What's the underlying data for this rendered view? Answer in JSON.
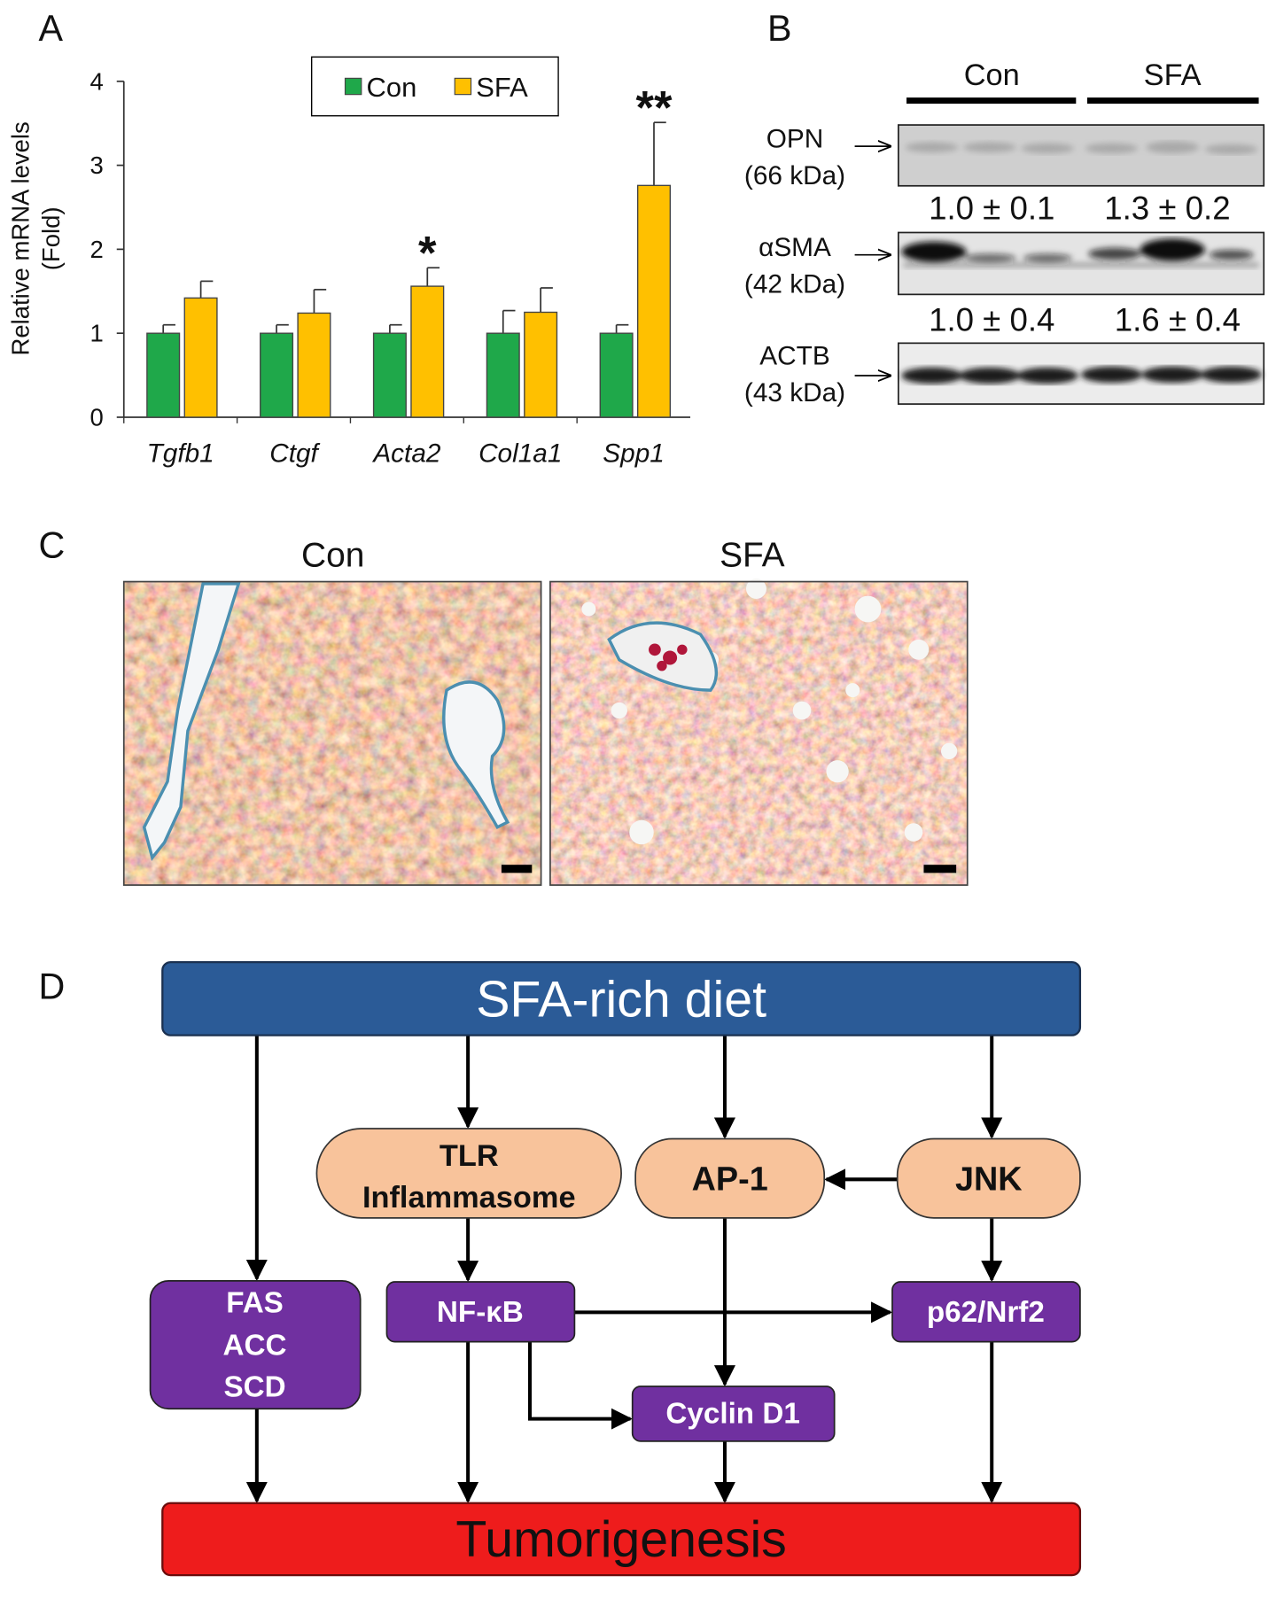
{
  "panel_labels": [
    "A",
    "B",
    "C",
    "D"
  ],
  "chart_data": {
    "type": "bar",
    "y_label": [
      "Relative mRNA levels",
      "(Fold)"
    ],
    "categories": [
      "Tgfb1",
      "Ctgf",
      "Acta2",
      "Col1a1",
      "Spp1"
    ],
    "series": [
      {
        "name": "Con",
        "color": "#1fa84a",
        "values": [
          1,
          1,
          1,
          1,
          1
        ],
        "errors": [
          0.1,
          0.1,
          0.1,
          0.27,
          0.1
        ]
      },
      {
        "name": "SFA",
        "color": "#ffc000",
        "values": [
          1.42,
          1.24,
          1.56,
          1.25,
          2.76
        ],
        "errors": [
          0.2,
          0.28,
          0.22,
          0.29,
          0.75
        ]
      }
    ],
    "significance": [
      null,
      null,
      "*",
      null,
      "**"
    ],
    "ylim": [
      0,
      4
    ],
    "yticks": [
      0,
      1,
      2,
      3,
      4
    ],
    "legend": "top"
  },
  "western_blot": {
    "groups": [
      "Con",
      "SFA"
    ],
    "rows": [
      {
        "protein": "OPN",
        "size": "(66 kDa)",
        "quantification": [
          "1.0 ± 0.1",
          "1.3 ± 0.2"
        ]
      },
      {
        "protein": "αSMA",
        "size": "(42 kDa)",
        "quantification": [
          "1.0 ± 0.4",
          "1.6 ± 0.4"
        ]
      },
      {
        "protein": "ACTB",
        "size": "(43 kDa)"
      }
    ]
  },
  "histology": {
    "titles": [
      "Con",
      "SFA"
    ]
  },
  "diagram": {
    "nodes": [
      {
        "lines": [
          "SFA-rich diet"
        ]
      },
      {
        "lines": [
          "TLR",
          "Inflammasome"
        ]
      },
      {
        "lines": [
          "AP-1"
        ]
      },
      {
        "lines": [
          "JNK"
        ]
      },
      {
        "lines": [
          "FAS",
          "ACC",
          "SCD"
        ]
      },
      {
        "lines": [
          "NF-κB"
        ]
      },
      {
        "lines": [
          "p62/Nrf2"
        ]
      },
      {
        "lines": [
          "Cyclin D1"
        ]
      },
      {
        "lines": [
          "Tumorigenesis"
        ]
      }
    ]
  }
}
